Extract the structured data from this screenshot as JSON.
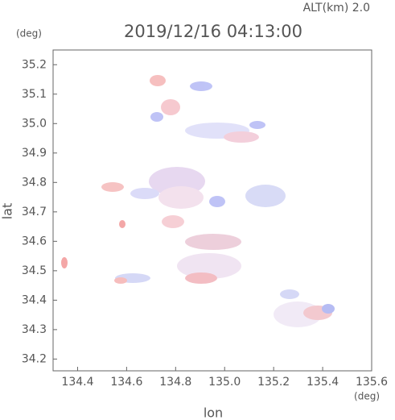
{
  "chart_data": {
    "type": "field",
    "title": "2019/12/16 04:13:00",
    "annotation": "ALT(km) 2.0",
    "x_label": "lon",
    "x_unit": "(deg)",
    "y_label": "lat",
    "y_unit": "(deg)",
    "xlim": [
      134.3,
      135.6
    ],
    "xticks": [
      134.4,
      134.6,
      134.8,
      {
        "value": 135,
        "label": "135.0"
      },
      135.2,
      135.4,
      135.6
    ],
    "ylim": [
      34.16,
      35.25
    ],
    "yticks": [
      34.2,
      34.3,
      34.4,
      34.5,
      34.6,
      34.7,
      34.8,
      34.9,
      {
        "value": 35,
        "label": "35.0"
      },
      35.1,
      35.2
    ]
  }
}
